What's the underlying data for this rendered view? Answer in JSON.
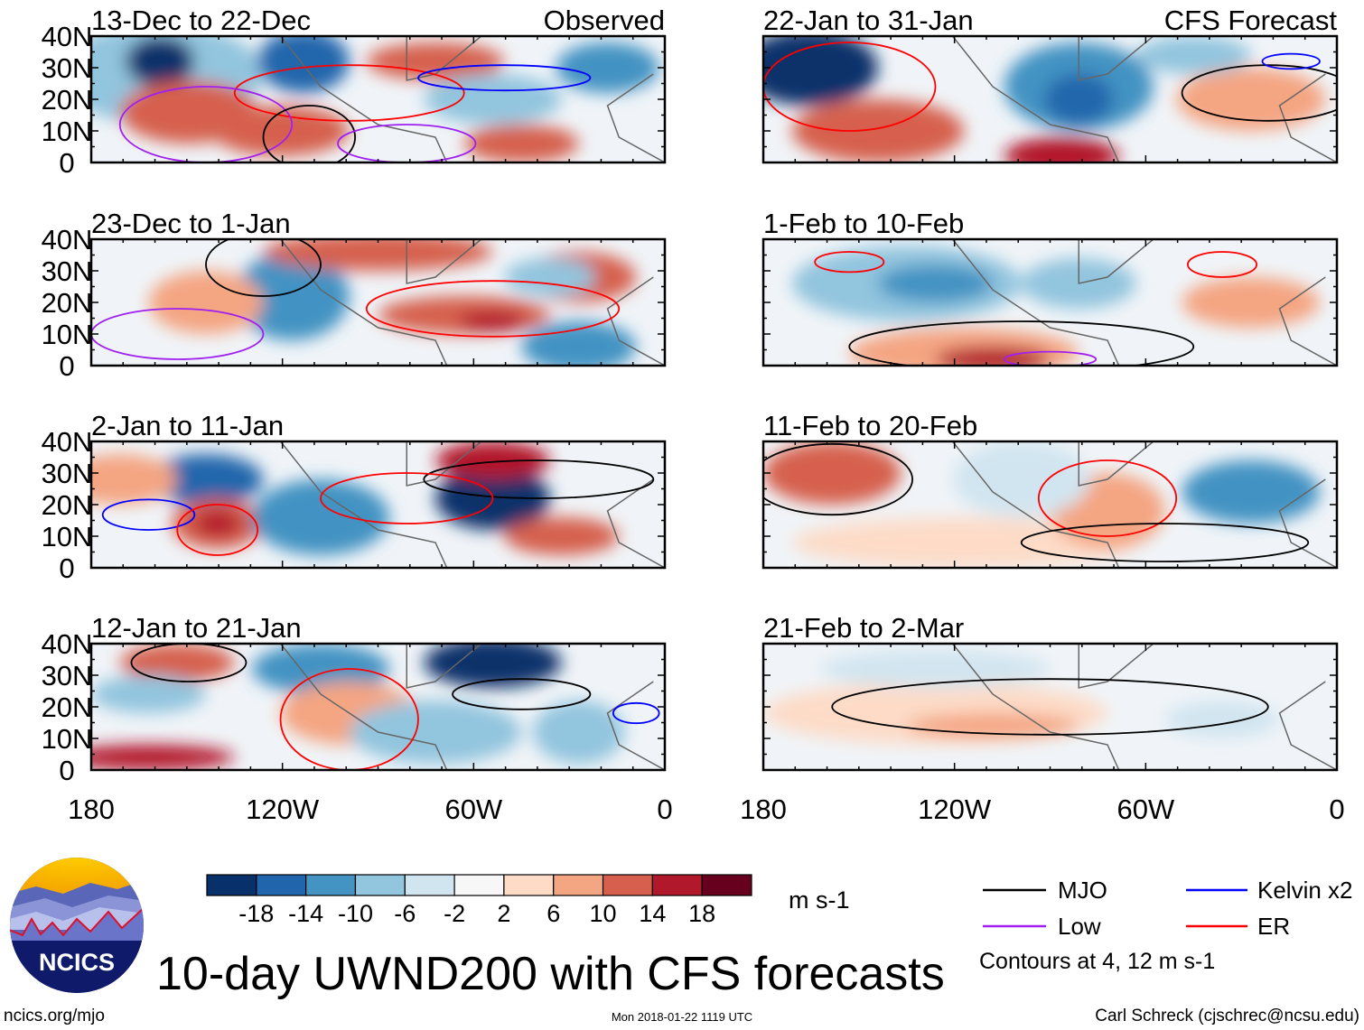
{
  "panels": [
    {
      "title": "13-Dec to 22-Dec",
      "tag": "Observed"
    },
    {
      "title": "22-Jan to 31-Jan",
      "tag": "CFS Forecast"
    },
    {
      "title": "23-Dec to 1-Jan",
      "tag": ""
    },
    {
      "title": "1-Feb to 10-Feb",
      "tag": ""
    },
    {
      "title": "2-Jan to 11-Jan",
      "tag": ""
    },
    {
      "title": "11-Feb to 20-Feb",
      "tag": ""
    },
    {
      "title": "12-Jan to 21-Jan",
      "tag": ""
    },
    {
      "title": "21-Feb to 2-Mar",
      "tag": ""
    }
  ],
  "y_ticks": [
    "40N",
    "30N",
    "20N",
    "10N",
    "0"
  ],
  "x_ticks": [
    "180",
    "120W",
    "60W",
    "0"
  ],
  "colorbar": {
    "colors": [
      "#08306b",
      "#2166ac",
      "#4393c3",
      "#92c5de",
      "#d1e5f0",
      "#f7f7f7",
      "#fddbc7",
      "#f4a582",
      "#d6604d",
      "#b2182b",
      "#67001f"
    ],
    "labels": [
      "-18",
      "-14",
      "-10",
      "-6",
      "-2",
      "2",
      "6",
      "10",
      "14",
      "18"
    ],
    "units": "m s-1"
  },
  "legend": {
    "items": [
      {
        "label": "MJO",
        "color": "#000000"
      },
      {
        "label": "Kelvin x2",
        "color": "#0000ff"
      },
      {
        "label": "Low",
        "color": "#a020f0"
      },
      {
        "label": "ER",
        "color": "#ff0000"
      }
    ],
    "note": "Contours at 4, 12 m s-1"
  },
  "title": "10-day UWND200 with CFS forecasts",
  "logo": "NCICS",
  "footer": {
    "url": "ncics.org/mjo",
    "timestamp": "Mon 2018-01-22 1119 UTC",
    "author": "Carl Schreck (cjschrec@ncsu.edu)"
  }
}
